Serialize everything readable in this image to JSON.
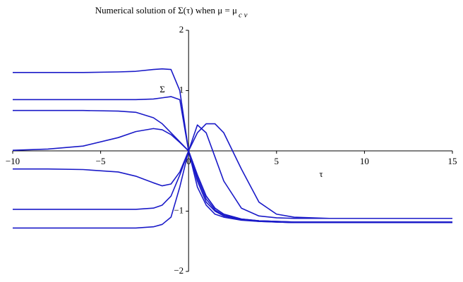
{
  "chart_data": {
    "type": "line",
    "title": "Numerical solution of Σ(τ) when μ = μ",
    "title_subscript": "c v",
    "x_label": "τ",
    "y_label": "Σ",
    "xlim": [
      -10,
      15
    ],
    "ylim": [
      -2,
      2
    ],
    "xticks": [
      {
        "value": -10,
        "label": "−10"
      },
      {
        "value": -5,
        "label": "−5"
      },
      0,
      5,
      10,
      15
    ],
    "yticks": [
      {
        "value": -2,
        "label": "−2"
      },
      {
        "value": -1,
        "label": "−1"
      },
      1,
      2
    ],
    "x": [
      -10,
      -8,
      -6,
      -4,
      -3,
      -2,
      -1.5,
      -1,
      -0.5,
      0,
      0.5,
      1,
      1.5,
      2,
      3,
      4,
      5,
      6,
      8,
      10,
      15
    ],
    "color": "#1a1ac8",
    "series": [
      {
        "values": [
          1.3,
          1.3,
          1.3,
          1.31,
          1.32,
          1.35,
          1.36,
          1.35,
          1.0,
          0,
          -0.6,
          -0.9,
          -1.05,
          -1.1,
          -1.15,
          -1.17,
          -1.18,
          -1.19,
          -1.19,
          -1.19,
          -1.19
        ]
      },
      {
        "values": [
          0.85,
          0.85,
          0.85,
          0.85,
          0.85,
          0.86,
          0.88,
          0.9,
          0.85,
          0,
          -0.5,
          -0.85,
          -1.0,
          -1.08,
          -1.14,
          -1.16,
          -1.17,
          -1.18,
          -1.18,
          -1.18,
          -1.18
        ]
      },
      {
        "values": [
          0.67,
          0.67,
          0.67,
          0.66,
          0.64,
          0.55,
          0.45,
          0.3,
          0.15,
          0,
          -0.4,
          -0.75,
          -0.95,
          -1.05,
          -1.13,
          -1.16,
          -1.17,
          -1.18,
          -1.18,
          -1.18,
          -1.18
        ]
      },
      {
        "values": [
          0.01,
          0.03,
          0.08,
          0.22,
          0.32,
          0.37,
          0.35,
          0.27,
          0.14,
          0,
          -0.45,
          -0.8,
          -0.98,
          -1.07,
          -1.14,
          -1.17,
          -1.18,
          -1.19,
          -1.19,
          -1.19,
          -1.19
        ]
      },
      {
        "values": [
          -0.3,
          -0.3,
          -0.31,
          -0.35,
          -0.42,
          -0.53,
          -0.58,
          -0.55,
          -0.35,
          0,
          0.43,
          0.3,
          -0.1,
          -0.5,
          -0.95,
          -1.08,
          -1.11,
          -1.12,
          -1.12,
          -1.12,
          -1.12
        ]
      },
      {
        "values": [
          -0.97,
          -0.97,
          -0.97,
          -0.97,
          -0.97,
          -0.95,
          -0.9,
          -0.75,
          -0.4,
          0,
          0.3,
          0.45,
          0.45,
          0.3,
          -0.3,
          -0.85,
          -1.05,
          -1.1,
          -1.12,
          -1.12,
          -1.12
        ]
      },
      {
        "values": [
          -1.28,
          -1.28,
          -1.28,
          -1.28,
          -1.28,
          -1.26,
          -1.22,
          -1.1,
          -0.6,
          0,
          -0.4,
          -0.75,
          -0.95,
          -1.05,
          -1.13,
          -1.16,
          -1.18,
          -1.19,
          -1.19,
          -1.19,
          -1.19
        ]
      }
    ]
  }
}
